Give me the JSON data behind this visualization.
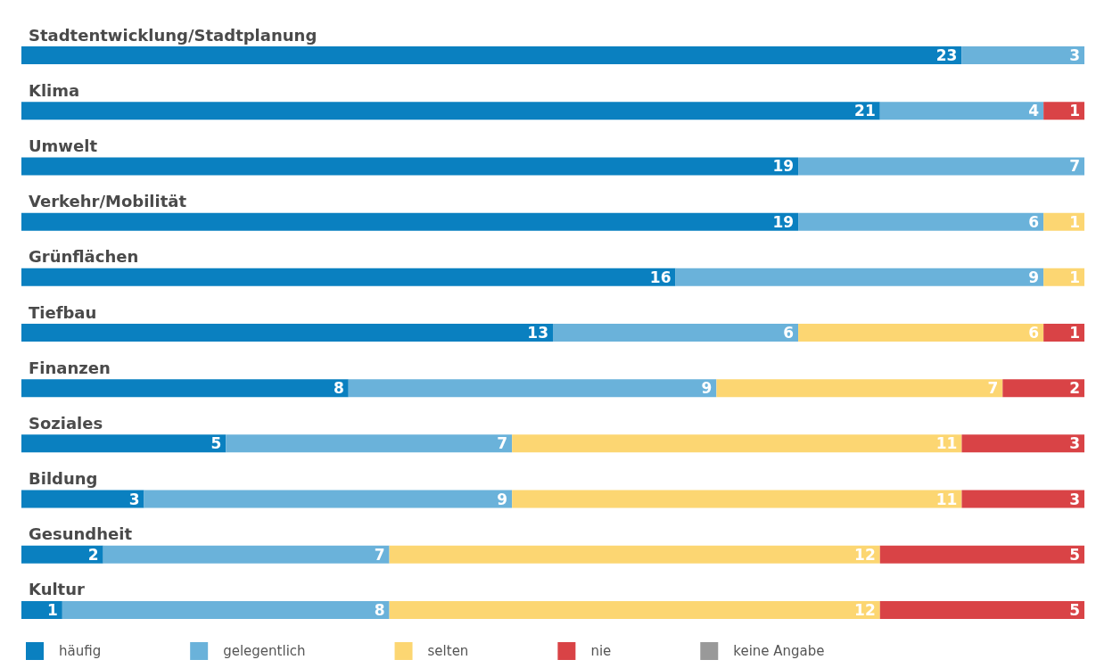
{
  "chart_data": {
    "type": "bar",
    "orientation": "horizontal",
    "stacked": true,
    "legend": "bottom left",
    "xlim": [
      0,
      26
    ],
    "categories": [
      "Stadtentwicklung/Stadtplanung",
      "Klima",
      "Umwelt",
      "Verkehr/Mobilität",
      "Grünflächen",
      "Tiefbau",
      "Finanzen",
      "Soziales",
      "Bildung",
      "Gesundheit",
      "Kultur"
    ],
    "series": [
      {
        "name": "häufig",
        "color": "#0a80c0",
        "values": [
          23,
          21,
          19,
          19,
          16,
          13,
          8,
          5,
          3,
          2,
          1
        ],
        "value_labels": [
          "23",
          "21",
          "19",
          "19",
          "16",
          "13",
          "8",
          "5",
          "3",
          "2",
          "1"
        ]
      },
      {
        "name": "gelegentlich",
        "color": "#6ab2da",
        "values": [
          3,
          4,
          7,
          6,
          9,
          6,
          9,
          7,
          9,
          7,
          8
        ],
        "value_labels": [
          "3",
          "4",
          "7",
          "6",
          "9",
          "6",
          "9",
          "7",
          "9",
          "7",
          "8"
        ]
      },
      {
        "name": "selten",
        "color": "#fcd672",
        "values": [
          0,
          0,
          0,
          1,
          1,
          6,
          7,
          11,
          11,
          12,
          12
        ],
        "value_labels": [
          null,
          null,
          null,
          "1",
          "1",
          "6",
          "7",
          "11",
          "11",
          "12",
          "12"
        ]
      },
      {
        "name": "nie",
        "color": "#d94346",
        "values": [
          0,
          1,
          0,
          0,
          0,
          1,
          2,
          3,
          3,
          5,
          5
        ],
        "value_labels": [
          null,
          "1",
          null,
          null,
          null,
          "1",
          "2",
          "3",
          "3",
          "5",
          "5"
        ]
      },
      {
        "name": "keine Angabe",
        "color": "#999999",
        "values": [
          0,
          0,
          0,
          0,
          0,
          0,
          0,
          0,
          0,
          0,
          0
        ],
        "value_labels": [
          null,
          null,
          null,
          null,
          null,
          null,
          null,
          null,
          null,
          null,
          null
        ]
      }
    ]
  }
}
